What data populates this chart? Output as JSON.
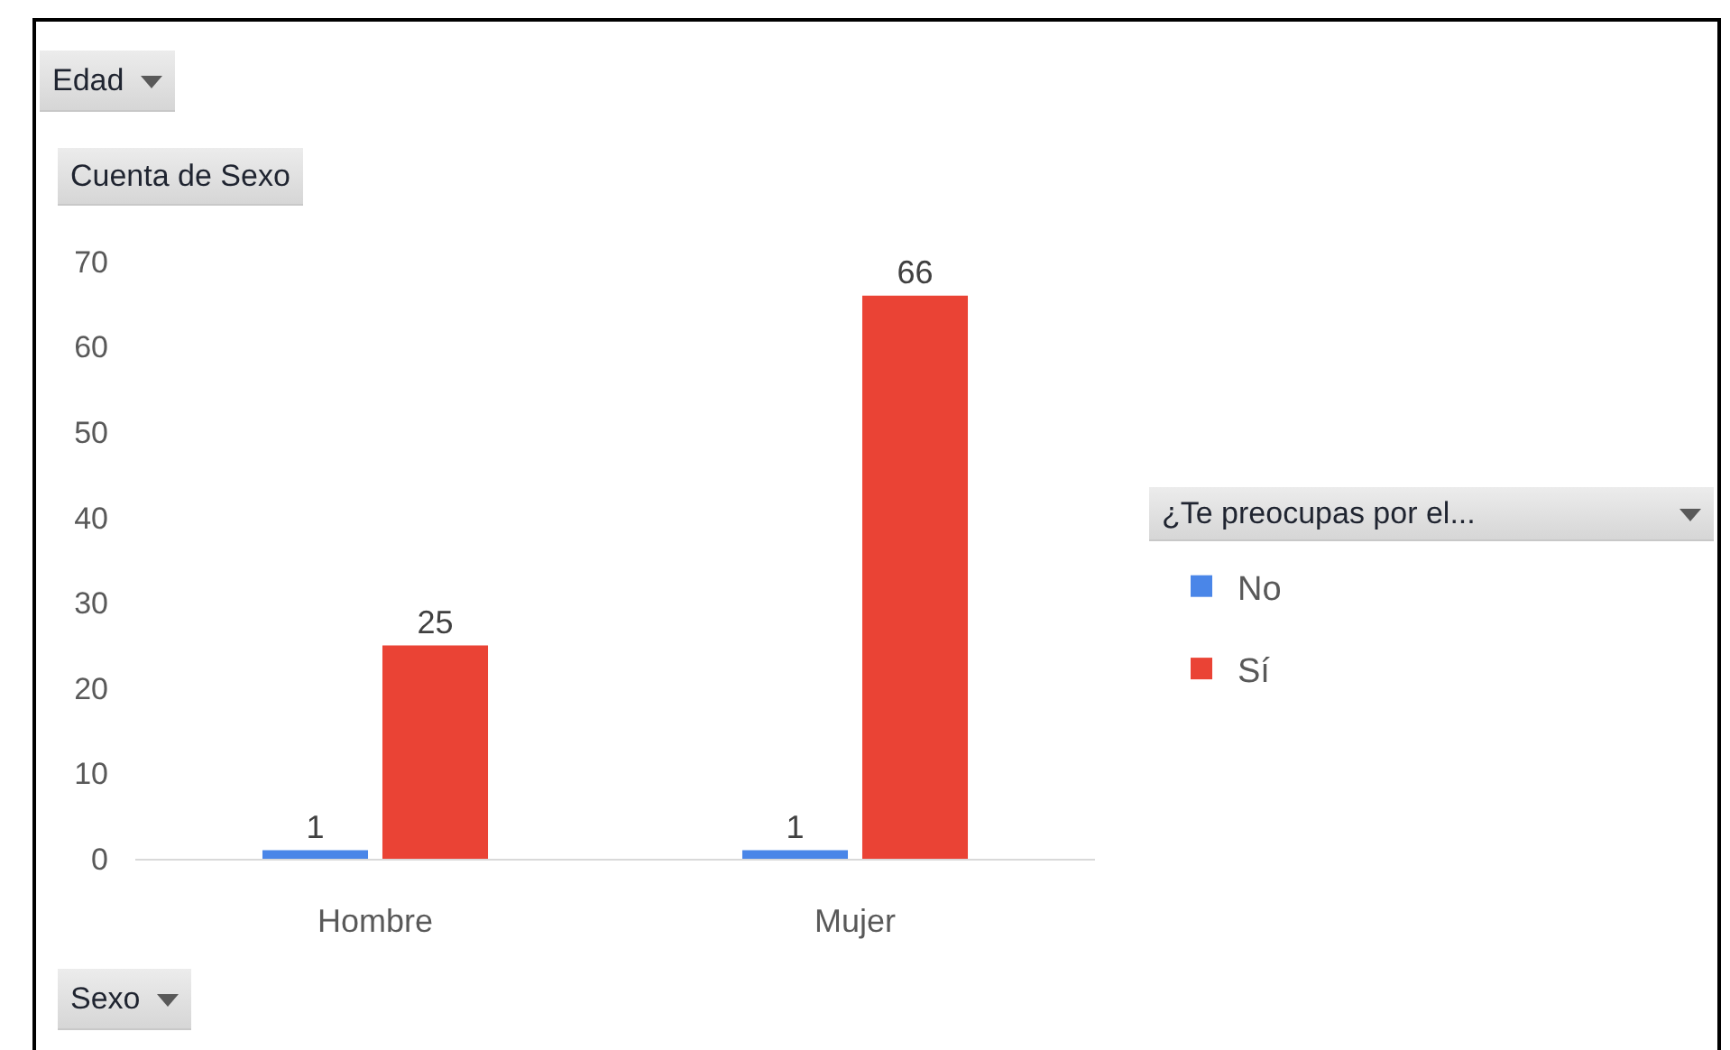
{
  "chart_data": {
    "type": "bar",
    "categories": [
      "Hombre",
      "Mujer"
    ],
    "series": [
      {
        "name": "No",
        "color": "#4a86e8",
        "values": [
          1,
          1
        ]
      },
      {
        "name": "Sí",
        "color": "#ea4335",
        "values": [
          25,
          66
        ]
      }
    ],
    "ylim": [
      0,
      70
    ],
    "yticks": [
      0,
      10,
      20,
      30,
      40,
      50,
      60,
      70
    ],
    "data_labels": true,
    "legend": "right",
    "legend_title": "¿Te preocupas por el...",
    "xlabel": "Sexo",
    "ylabel": "Cuenta de Sexo",
    "annotations": [
      "Edad"
    ]
  }
}
